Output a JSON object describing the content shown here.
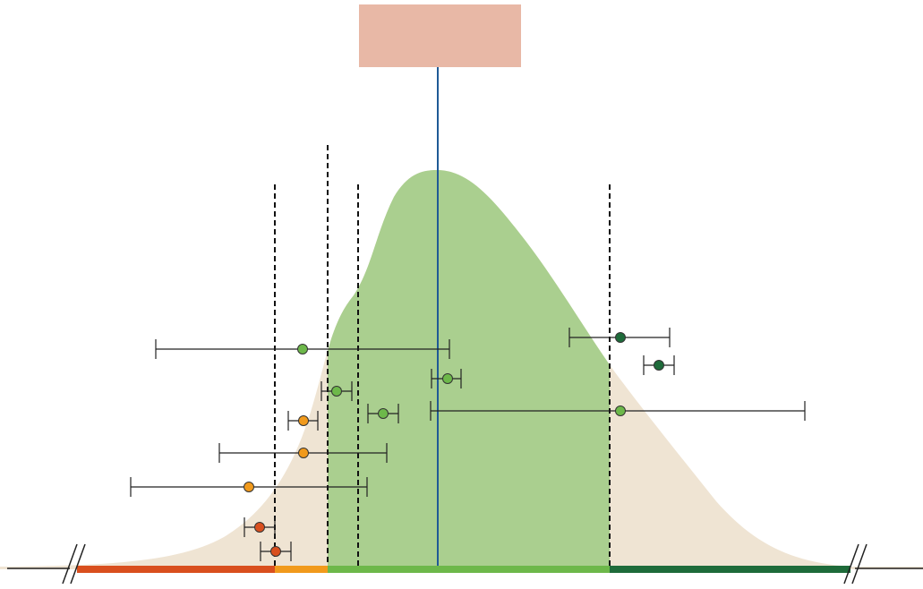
{
  "palette": {
    "background_curve": "#efe4d3",
    "green_region": "#aacf8f",
    "center_box": "#e8b8a6",
    "center_line": "#1f5a96",
    "dashed_line": "#111111",
    "axis": "#222222",
    "error_bar": "#222222",
    "seg_red": "#d94f1e",
    "seg_orange": "#f19a1c",
    "seg_light_green": "#6db84a",
    "seg_dark_green": "#1e6b3a"
  },
  "center_box": {
    "label": ""
  },
  "axis": {
    "break_left": true,
    "break_right": true
  },
  "categories": [
    {
      "name": "red",
      "color": "#d94f1e"
    },
    {
      "name": "orange",
      "color": "#f19a1c"
    },
    {
      "name": "light-green",
      "color": "#6db84a"
    },
    {
      "name": "dark-green",
      "color": "#1e6b3a"
    }
  ],
  "points": [
    {
      "category": "light-green",
      "color": "#6db84a"
    },
    {
      "category": "light-green",
      "color": "#6db84a"
    },
    {
      "category": "light-green",
      "color": "#6db84a"
    },
    {
      "category": "light-green",
      "color": "#6db84a"
    },
    {
      "category": "light-green",
      "color": "#6db84a"
    },
    {
      "category": "orange",
      "color": "#f19a1c"
    },
    {
      "category": "orange",
      "color": "#f19a1c"
    },
    {
      "category": "orange",
      "color": "#f19a1c"
    },
    {
      "category": "red",
      "color": "#d94f1e"
    },
    {
      "category": "red",
      "color": "#d94f1e"
    },
    {
      "category": "dark-green",
      "color": "#1e6b3a"
    },
    {
      "category": "dark-green",
      "color": "#1e6b3a"
    }
  ]
}
